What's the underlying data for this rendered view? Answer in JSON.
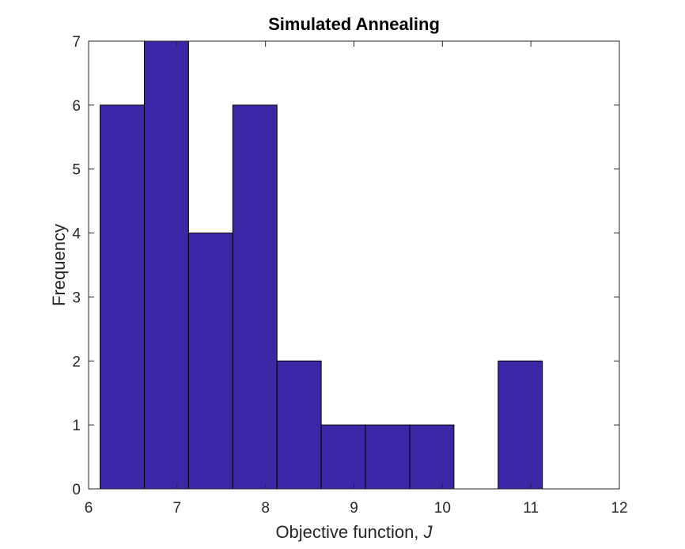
{
  "chart_data": {
    "type": "bar",
    "title": "Simulated Annealing",
    "xlabel_prefix": "Objective function, ",
    "xlabel_var": "J",
    "ylabel": "Frequency",
    "xlim": [
      6,
      12
    ],
    "ylim": [
      0,
      7
    ],
    "xticks": [
      "6",
      "7",
      "8",
      "9",
      "10",
      "11",
      "12"
    ],
    "yticks": [
      "0",
      "1",
      "2",
      "3",
      "4",
      "5",
      "6",
      "7"
    ],
    "bin_edges": [
      6.13,
      6.63,
      7.13,
      7.63,
      8.13,
      8.63,
      9.13,
      9.63,
      10.13,
      10.63,
      11.13
    ],
    "values": [
      6,
      7,
      4,
      6,
      2,
      1,
      1,
      1,
      0,
      2
    ],
    "bar_color": "#3d27a6",
    "grid": false,
    "box": true
  }
}
